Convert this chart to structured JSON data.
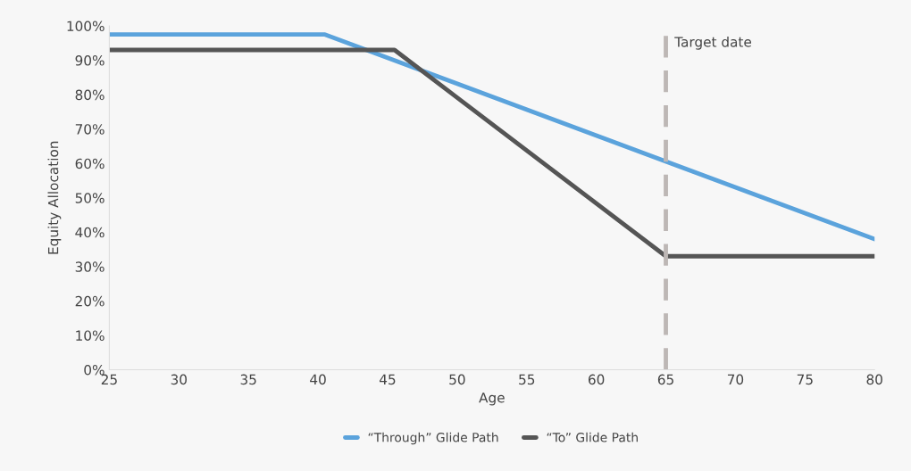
{
  "chart_data": {
    "type": "line",
    "xlabel": "Age",
    "ylabel": "Equity Allocation",
    "series": [
      {
        "name": "“Through” Glide Path",
        "color": "#5ba3dc",
        "x": [
          25,
          40.5,
          80
        ],
        "values": [
          97.5,
          97.5,
          38
        ]
      },
      {
        "name": "“To” Glide Path",
        "color": "#555555",
        "x": [
          25,
          45.5,
          65,
          80
        ],
        "values": [
          93,
          93,
          33,
          33
        ]
      }
    ],
    "xlim": [
      25,
      80
    ],
    "xticks": [
      25,
      30,
      35,
      40,
      45,
      50,
      55,
      60,
      65,
      70,
      75,
      80
    ],
    "ylim": [
      0,
      100
    ],
    "yticks": [
      {
        "value": 0,
        "label": "0%"
      },
      {
        "value": 10,
        "label": "10%"
      },
      {
        "value": 20,
        "label": "20%"
      },
      {
        "value": 30,
        "label": "30%"
      },
      {
        "value": 40,
        "label": "40%"
      },
      {
        "value": 50,
        "label": "50%"
      },
      {
        "value": 60,
        "label": "60%"
      },
      {
        "value": 70,
        "label": "70%"
      },
      {
        "value": 80,
        "label": "80%"
      },
      {
        "value": 90,
        "label": "90%"
      },
      {
        "value": 100,
        "label": "100%"
      }
    ],
    "ref_lines": [
      {
        "axis": "x",
        "value": 65,
        "label": "Target date",
        "color": "#bdb7b5",
        "line_style": "dashed"
      }
    ],
    "grid": false,
    "legend": "bottom",
    "marker": "none",
    "line_style": "solid"
  }
}
